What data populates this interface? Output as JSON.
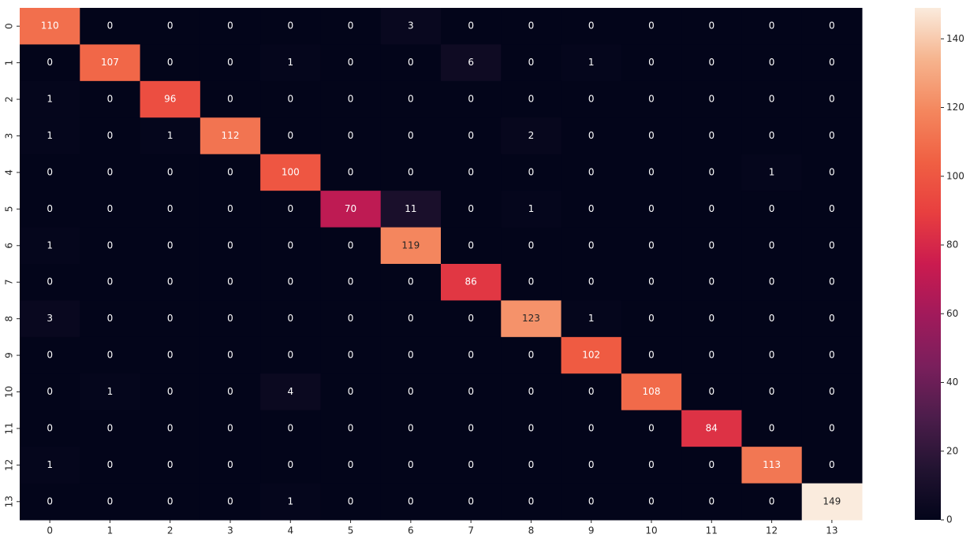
{
  "chart_data": {
    "type": "heatmap",
    "x_categories": [
      "0",
      "1",
      "2",
      "3",
      "4",
      "5",
      "6",
      "7",
      "8",
      "9",
      "10",
      "11",
      "12",
      "13"
    ],
    "y_categories": [
      "0",
      "1",
      "2",
      "3",
      "4",
      "5",
      "6",
      "7",
      "8",
      "9",
      "10",
      "11",
      "12",
      "13"
    ],
    "values": [
      [
        110,
        0,
        0,
        0,
        0,
        0,
        3,
        0,
        0,
        0,
        0,
        0,
        0,
        0
      ],
      [
        0,
        107,
        0,
        0,
        1,
        0,
        0,
        6,
        0,
        1,
        0,
        0,
        0,
        0
      ],
      [
        1,
        0,
        96,
        0,
        0,
        0,
        0,
        0,
        0,
        0,
        0,
        0,
        0,
        0
      ],
      [
        1,
        0,
        1,
        112,
        0,
        0,
        0,
        0,
        2,
        0,
        0,
        0,
        0,
        0
      ],
      [
        0,
        0,
        0,
        0,
        100,
        0,
        0,
        0,
        0,
        0,
        0,
        0,
        1,
        0
      ],
      [
        0,
        0,
        0,
        0,
        0,
        70,
        11,
        0,
        1,
        0,
        0,
        0,
        0,
        0
      ],
      [
        1,
        0,
        0,
        0,
        0,
        0,
        119,
        0,
        0,
        0,
        0,
        0,
        0,
        0
      ],
      [
        0,
        0,
        0,
        0,
        0,
        0,
        0,
        86,
        0,
        0,
        0,
        0,
        0,
        0
      ],
      [
        3,
        0,
        0,
        0,
        0,
        0,
        0,
        0,
        123,
        1,
        0,
        0,
        0,
        0
      ],
      [
        0,
        0,
        0,
        0,
        0,
        0,
        0,
        0,
        0,
        102,
        0,
        0,
        0,
        0
      ],
      [
        0,
        1,
        0,
        0,
        4,
        0,
        0,
        0,
        0,
        0,
        108,
        0,
        0,
        0
      ],
      [
        0,
        0,
        0,
        0,
        0,
        0,
        0,
        0,
        0,
        0,
        0,
        84,
        0,
        0
      ],
      [
        1,
        0,
        0,
        0,
        0,
        0,
        0,
        0,
        0,
        0,
        0,
        0,
        113,
        0
      ],
      [
        0,
        0,
        0,
        0,
        1,
        0,
        0,
        0,
        0,
        0,
        0,
        0,
        0,
        149
      ]
    ],
    "zlim": [
      0,
      149
    ],
    "colorbar_ticks": [
      0,
      20,
      40,
      60,
      80,
      100,
      120,
      140
    ],
    "colormap": [
      "#03051a",
      "#221331",
      "#4c1d4b",
      "#7a1f5c",
      "#a11a5b",
      "#cb1b4f",
      "#e83f3f",
      "#f06043",
      "#f4875e",
      "#f6b48e",
      "#faebdd"
    ]
  }
}
